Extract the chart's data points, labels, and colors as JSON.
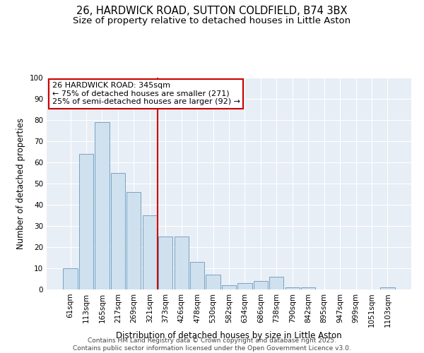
{
  "title_line1": "26, HARDWICK ROAD, SUTTON COLDFIELD, B74 3BX",
  "title_line2": "Size of property relative to detached houses in Little Aston",
  "xlabel": "Distribution of detached houses by size in Little Aston",
  "ylabel": "Number of detached properties",
  "bar_color": "#cfe0ef",
  "bar_edge_color": "#6699bb",
  "categories": [
    "61sqm",
    "113sqm",
    "165sqm",
    "217sqm",
    "269sqm",
    "321sqm",
    "373sqm",
    "426sqm",
    "478sqm",
    "530sqm",
    "582sqm",
    "634sqm",
    "686sqm",
    "738sqm",
    "790sqm",
    "842sqm",
    "895sqm",
    "947sqm",
    "999sqm",
    "1051sqm",
    "1103sqm"
  ],
  "values": [
    10,
    64,
    79,
    55,
    46,
    35,
    25,
    25,
    13,
    7,
    2,
    3,
    4,
    6,
    1,
    1,
    0,
    0,
    0,
    0,
    1
  ],
  "ylim": [
    0,
    100
  ],
  "yticks": [
    0,
    10,
    20,
    30,
    40,
    50,
    60,
    70,
    80,
    90,
    100
  ],
  "vline_x": 5.5,
  "vline_color": "#cc0000",
  "annotation_box_text": "26 HARDWICK ROAD: 345sqm\n← 75% of detached houses are smaller (271)\n25% of semi-detached houses are larger (92) →",
  "background_color": "#e8eef5",
  "footer_text": "Contains HM Land Registry data © Crown copyright and database right 2025.\nContains public sector information licensed under the Open Government Licence v3.0.",
  "title_fontsize": 10.5,
  "subtitle_fontsize": 9.5,
  "label_fontsize": 8.5,
  "tick_fontsize": 7.5,
  "annotation_fontsize": 8,
  "footer_fontsize": 6.5
}
